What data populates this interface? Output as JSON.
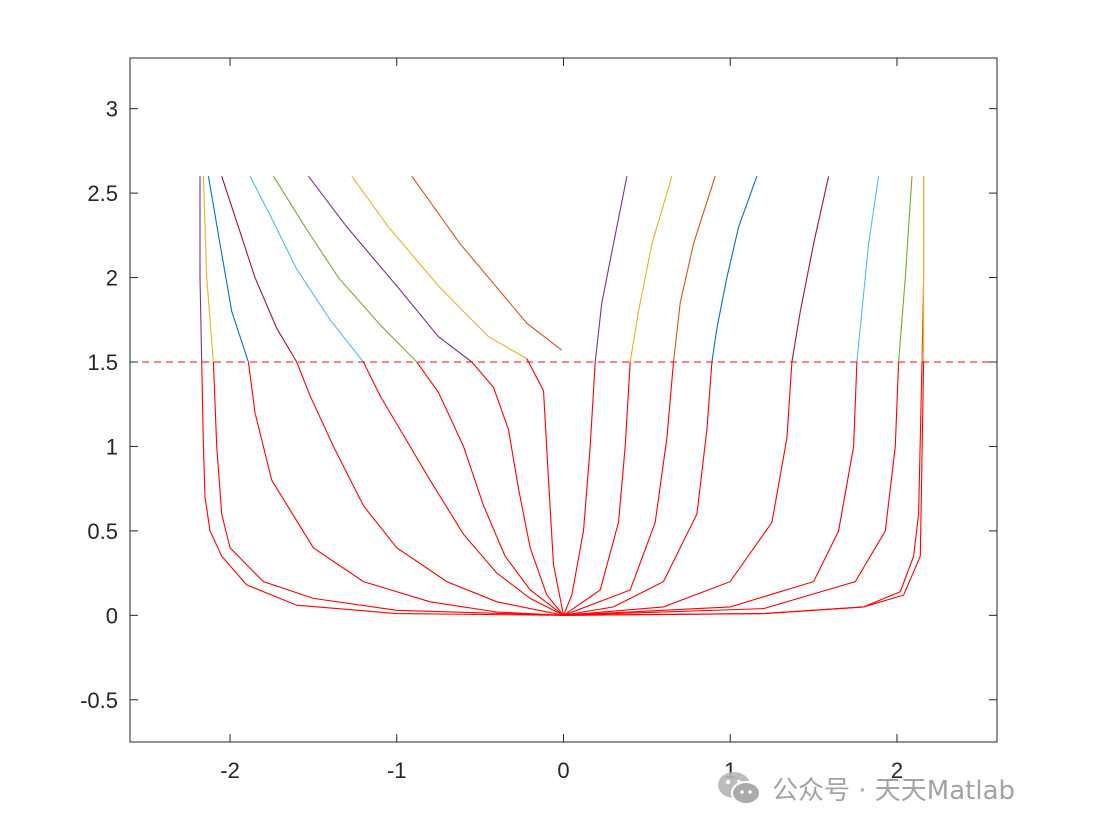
{
  "chart_data": {
    "type": "line",
    "title": "",
    "xlabel": "",
    "ylabel": "",
    "xlim": [
      -2.6,
      2.6
    ],
    "ylim": [
      -0.75,
      3.3
    ],
    "xticks": [
      -2,
      -1,
      0,
      1,
      2
    ],
    "yticks": [
      -0.5,
      0,
      0.5,
      1,
      1.5,
      2,
      2.5,
      3
    ],
    "xtick_labels": [
      "-2",
      "-1",
      "0",
      "1",
      "2"
    ],
    "ytick_labels": [
      "-0.5",
      "0",
      "0.5",
      "1",
      "1.5",
      "2",
      "2.5",
      "3"
    ],
    "grid": false,
    "reference_line": {
      "y": 1.5,
      "style": "dashed",
      "color": "#ff0000"
    },
    "lower_color": "#ff0000",
    "series": [
      {
        "color": "#7e2f8e",
        "upper": [
          [
            -2.18,
            2.6
          ],
          [
            -2.18,
            2.0
          ],
          [
            -2.17,
            1.5
          ]
        ],
        "lower": [
          [
            -2.17,
            1.5
          ],
          [
            -2.16,
            1.0
          ],
          [
            -2.15,
            0.7
          ],
          [
            -2.12,
            0.5
          ],
          [
            -2.05,
            0.35
          ],
          [
            -1.9,
            0.18
          ],
          [
            -1.6,
            0.06
          ],
          [
            -1.0,
            0.01
          ],
          [
            0,
            0
          ]
        ]
      },
      {
        "color": "#edb120",
        "upper": [
          [
            -2.16,
            2.6
          ],
          [
            -2.14,
            2.0
          ],
          [
            -2.1,
            1.5
          ]
        ],
        "lower": [
          [
            -2.1,
            1.5
          ],
          [
            -2.08,
            1.0
          ],
          [
            -2.05,
            0.6
          ],
          [
            -2.0,
            0.4
          ],
          [
            -1.8,
            0.2
          ],
          [
            -1.5,
            0.1
          ],
          [
            -1.0,
            0.03
          ],
          [
            0,
            0
          ]
        ]
      },
      {
        "color": "#0072bd",
        "upper": [
          [
            -2.13,
            2.6
          ],
          [
            -2.06,
            2.2
          ],
          [
            -1.99,
            1.8
          ],
          [
            -1.89,
            1.5
          ]
        ],
        "lower": [
          [
            -1.89,
            1.5
          ],
          [
            -1.85,
            1.2
          ],
          [
            -1.75,
            0.8
          ],
          [
            -1.5,
            0.4
          ],
          [
            -1.2,
            0.2
          ],
          [
            -0.8,
            0.08
          ],
          [
            -0.4,
            0.02
          ],
          [
            0,
            0
          ]
        ]
      },
      {
        "color": "#a2142f",
        "upper": [
          [
            -2.05,
            2.6
          ],
          [
            -1.95,
            2.3
          ],
          [
            -1.85,
            2.0
          ],
          [
            -1.72,
            1.7
          ],
          [
            -1.6,
            1.5
          ]
        ],
        "lower": [
          [
            -1.6,
            1.5
          ],
          [
            -1.52,
            1.3
          ],
          [
            -1.38,
            1.0
          ],
          [
            -1.2,
            0.65
          ],
          [
            -1.0,
            0.4
          ],
          [
            -0.7,
            0.2
          ],
          [
            -0.4,
            0.08
          ],
          [
            0,
            0
          ]
        ]
      },
      {
        "color": "#4dbeee",
        "upper": [
          [
            -1.88,
            2.6
          ],
          [
            -1.75,
            2.35
          ],
          [
            -1.6,
            2.05
          ],
          [
            -1.4,
            1.75
          ],
          [
            -1.2,
            1.5
          ]
        ],
        "lower": [
          [
            -1.2,
            1.5
          ],
          [
            -1.1,
            1.3
          ],
          [
            -0.95,
            1.05
          ],
          [
            -0.8,
            0.8
          ],
          [
            -0.6,
            0.48
          ],
          [
            -0.4,
            0.25
          ],
          [
            -0.2,
            0.1
          ],
          [
            0,
            0
          ]
        ]
      },
      {
        "color": "#77ac30",
        "upper": [
          [
            -1.74,
            2.6
          ],
          [
            -1.55,
            2.3
          ],
          [
            -1.35,
            2.0
          ],
          [
            -1.1,
            1.72
          ],
          [
            -0.88,
            1.5
          ]
        ],
        "lower": [
          [
            -0.88,
            1.5
          ],
          [
            -0.75,
            1.32
          ],
          [
            -0.6,
            1.0
          ],
          [
            -0.48,
            0.65
          ],
          [
            -0.35,
            0.35
          ],
          [
            -0.2,
            0.15
          ],
          [
            0,
            0
          ]
        ]
      },
      {
        "color": "#7e2f8e",
        "upper": [
          [
            -1.53,
            2.6
          ],
          [
            -1.3,
            2.3
          ],
          [
            -1.0,
            1.95
          ],
          [
            -0.75,
            1.65
          ],
          [
            -0.55,
            1.5
          ]
        ],
        "lower": [
          [
            -0.55,
            1.5
          ],
          [
            -0.42,
            1.35
          ],
          [
            -0.33,
            1.1
          ],
          [
            -0.27,
            0.75
          ],
          [
            -0.2,
            0.4
          ],
          [
            -0.1,
            0.12
          ],
          [
            0,
            0
          ]
        ]
      },
      {
        "color": "#edb120",
        "upper": [
          [
            -1.27,
            2.6
          ],
          [
            -1.05,
            2.3
          ],
          [
            -0.75,
            1.95
          ],
          [
            -0.45,
            1.65
          ],
          [
            -0.22,
            1.52
          ]
        ],
        "lower": [
          [
            -0.22,
            1.52
          ],
          [
            -0.12,
            1.33
          ],
          [
            -0.09,
            0.8
          ],
          [
            -0.06,
            0.3
          ],
          [
            0,
            0
          ]
        ]
      },
      {
        "color": "#d95319",
        "upper": [
          [
            -0.91,
            2.6
          ],
          [
            -0.62,
            2.2
          ],
          [
            -0.22,
            1.73
          ],
          [
            -0.01,
            1.57
          ]
        ],
        "lower": []
      },
      {
        "color": "#7e2f8e",
        "upper": [
          [
            0.38,
            2.6
          ],
          [
            0.3,
            2.2
          ],
          [
            0.23,
            1.85
          ],
          [
            0.19,
            1.5
          ]
        ],
        "lower": [
          [
            0.19,
            1.5
          ],
          [
            0.16,
            1.0
          ],
          [
            0.12,
            0.5
          ],
          [
            0.05,
            0.12
          ],
          [
            0,
            0
          ]
        ]
      },
      {
        "color": "#edb120",
        "upper": [
          [
            0.65,
            2.6
          ],
          [
            0.53,
            2.2
          ],
          [
            0.45,
            1.8
          ],
          [
            0.4,
            1.5
          ]
        ],
        "lower": [
          [
            0.4,
            1.5
          ],
          [
            0.37,
            1.0
          ],
          [
            0.33,
            0.55
          ],
          [
            0.22,
            0.15
          ],
          [
            0,
            0
          ]
        ]
      },
      {
        "color": "#d95319",
        "upper": [
          [
            0.91,
            2.6
          ],
          [
            0.78,
            2.2
          ],
          [
            0.7,
            1.85
          ],
          [
            0.66,
            1.5
          ]
        ],
        "lower": [
          [
            0.66,
            1.5
          ],
          [
            0.62,
            1.05
          ],
          [
            0.55,
            0.55
          ],
          [
            0.4,
            0.15
          ],
          [
            0,
            0
          ]
        ]
      },
      {
        "color": "#0072bd",
        "upper": [
          [
            1.16,
            2.6
          ],
          [
            1.05,
            2.3
          ],
          [
            0.98,
            2.0
          ],
          [
            0.92,
            1.7
          ],
          [
            0.89,
            1.5
          ]
        ],
        "lower": [
          [
            0.89,
            1.5
          ],
          [
            0.86,
            1.1
          ],
          [
            0.8,
            0.6
          ],
          [
            0.6,
            0.2
          ],
          [
            0.3,
            0.05
          ],
          [
            0,
            0
          ]
        ]
      },
      {
        "color": "#a2142f",
        "upper": [
          [
            1.59,
            2.6
          ],
          [
            1.5,
            2.2
          ],
          [
            1.42,
            1.8
          ],
          [
            1.37,
            1.5
          ]
        ],
        "lower": [
          [
            1.37,
            1.5
          ],
          [
            1.34,
            1.05
          ],
          [
            1.25,
            0.55
          ],
          [
            1.0,
            0.2
          ],
          [
            0.6,
            0.05
          ],
          [
            0,
            0
          ]
        ]
      },
      {
        "color": "#4dbeee",
        "upper": [
          [
            1.89,
            2.6
          ],
          [
            1.83,
            2.2
          ],
          [
            1.79,
            1.8
          ],
          [
            1.76,
            1.5
          ]
        ],
        "lower": [
          [
            1.76,
            1.5
          ],
          [
            1.74,
            1.0
          ],
          [
            1.65,
            0.5
          ],
          [
            1.5,
            0.2
          ],
          [
            1.0,
            0.05
          ],
          [
            0,
            0
          ]
        ]
      },
      {
        "color": "#77ac30",
        "upper": [
          [
            2.09,
            2.6
          ],
          [
            2.05,
            2.0
          ],
          [
            2.01,
            1.5
          ]
        ],
        "lower": [
          [
            2.01,
            1.5
          ],
          [
            1.99,
            1.0
          ],
          [
            1.93,
            0.5
          ],
          [
            1.75,
            0.2
          ],
          [
            1.2,
            0.04
          ],
          [
            0,
            0
          ]
        ]
      },
      {
        "color": "#d95319",
        "upper": [
          [
            2.16,
            2.6
          ],
          [
            2.16,
            2.0
          ],
          [
            2.15,
            1.5
          ]
        ],
        "lower": [
          [
            2.15,
            1.5
          ],
          [
            2.13,
            0.6
          ],
          [
            2.1,
            0.35
          ],
          [
            2.02,
            0.14
          ],
          [
            1.8,
            0.05
          ],
          [
            1.2,
            0.01
          ],
          [
            0,
            0
          ]
        ]
      },
      {
        "color": "#edb120",
        "upper": [
          [
            2.16,
            2.6
          ],
          [
            2.16,
            1.5
          ]
        ],
        "lower": [
          [
            2.16,
            1.5
          ],
          [
            2.14,
            0.35
          ],
          [
            2.04,
            0.12
          ],
          [
            1.8,
            0.05
          ],
          [
            1.2,
            0.01
          ],
          [
            0,
            0
          ]
        ]
      }
    ]
  },
  "watermark": {
    "text": "公众号 · 天天Matlab"
  }
}
